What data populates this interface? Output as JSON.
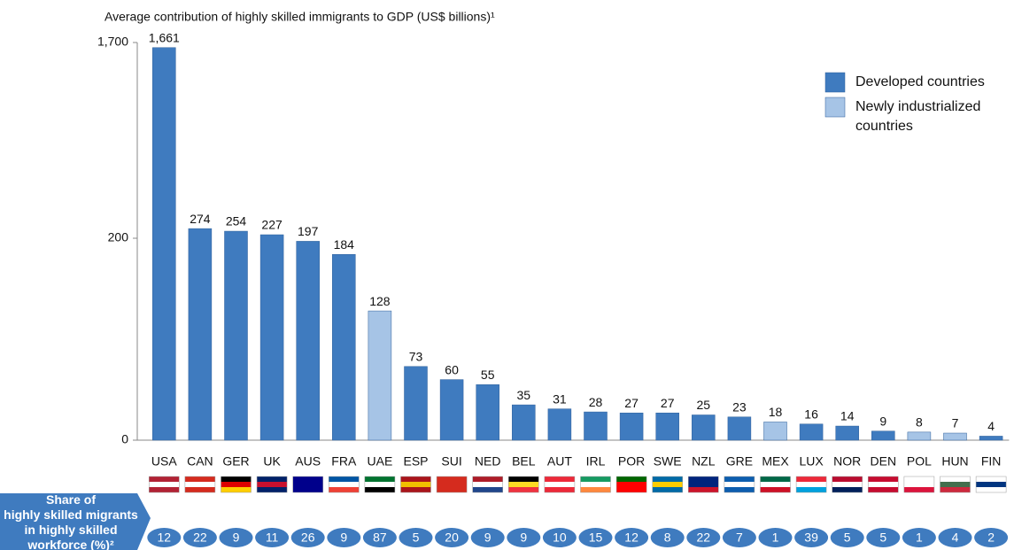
{
  "chart_data": {
    "type": "bar",
    "title": "Average contribution of highly skilled immigrants to GDP (US$ billions)¹",
    "categories": [
      "USA",
      "CAN",
      "GER",
      "UK",
      "AUS",
      "FRA",
      "UAE",
      "ESP",
      "SUI",
      "NED",
      "BEL",
      "AUT",
      "IRL",
      "POR",
      "SWE",
      "NZL",
      "GRE",
      "MEX",
      "LUX",
      "NOR",
      "DEN",
      "POL",
      "HUN",
      "FIN"
    ],
    "series": [
      {
        "name": "Developed countries",
        "color": "#3f7bbf",
        "values": [
          1661,
          274,
          254,
          227,
          197,
          184,
          null,
          73,
          60,
          55,
          35,
          31,
          28,
          27,
          27,
          25,
          23,
          null,
          16,
          14,
          9,
          null,
          null,
          4
        ],
        "value_labels": [
          "1,661",
          "274",
          "254",
          "227",
          "197",
          "184",
          null,
          "73",
          "60",
          "55",
          "35",
          "31",
          "28",
          "27",
          "27",
          "25",
          "23",
          null,
          "16",
          "14",
          "9",
          null,
          null,
          "4"
        ]
      },
      {
        "name": "Newly industrialized countries",
        "color": "#a6c4e6",
        "values": [
          null,
          null,
          null,
          null,
          null,
          null,
          128,
          null,
          null,
          null,
          null,
          null,
          null,
          null,
          null,
          null,
          null,
          18,
          null,
          null,
          null,
          8,
          7,
          null
        ]
      }
    ],
    "ylim": [
      0,
      1700
    ],
    "yticks": [
      0,
      200,
      {
        "value": 1700,
        "label": "1,700"
      }
    ],
    "legend": "top-right",
    "share_label": "Share of highly skilled migrants in highly skilled workforce (%)²",
    "shares": [
      12,
      22,
      9,
      11,
      26,
      9,
      87,
      5,
      20,
      9,
      9,
      10,
      15,
      12,
      8,
      22,
      7,
      1,
      39,
      5,
      5,
      1,
      4,
      2
    ]
  }
}
